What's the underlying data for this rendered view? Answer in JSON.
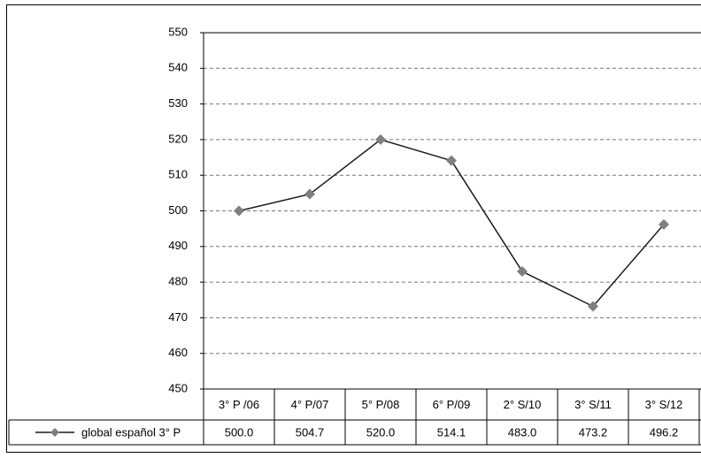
{
  "chart_data": {
    "type": "line",
    "categories": [
      "3° P /06",
      "4° P/07",
      "5° P/08",
      "6° P/09",
      "2° S/10",
      "3° S/11",
      "3° S/12"
    ],
    "series": [
      {
        "name": "global español 3° P",
        "color": "#1a1a1a",
        "marker_color": "#7f7f7f",
        "values": [
          500.0,
          504.7,
          520.0,
          514.1,
          483.0,
          473.2,
          496.2
        ],
        "value_labels": [
          "500.0",
          "504.7",
          "520.0",
          "514.1",
          "483.0",
          "473.2",
          "496.2"
        ]
      }
    ],
    "ylim": [
      450,
      550
    ],
    "yticks": [
      450,
      460,
      470,
      480,
      490,
      500,
      510,
      520,
      530,
      540,
      550
    ],
    "grid": true
  }
}
